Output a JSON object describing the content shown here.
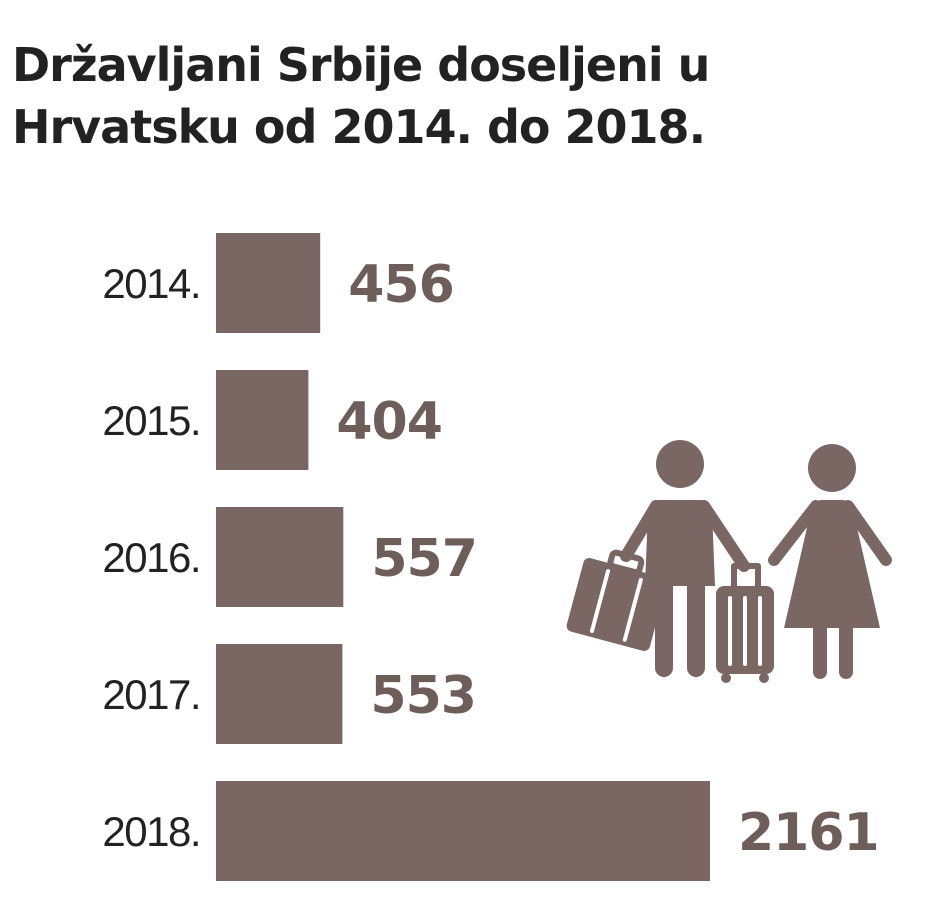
{
  "chart_data": {
    "type": "bar",
    "orientation": "horizontal",
    "title": "Državljani Srbije doseljeni u Hrvatsku od 2014. do 2018.",
    "title_lines": [
      "Državljani Srbije doseljeni u",
      "Hrvatsku od 2014. do 2018."
    ],
    "categories": [
      "2014.",
      "2015.",
      "2016.",
      "2017.",
      "2018."
    ],
    "values": [
      456,
      404,
      557,
      553,
      2161
    ],
    "value_labels": [
      "456",
      "404",
      "557",
      "553",
      "2161"
    ],
    "xlabel": "",
    "ylabel": "",
    "xlim": [
      0,
      2161
    ],
    "grid": false,
    "legend": "none"
  },
  "colors": {
    "bar": "#7a6763",
    "value_text": "#6e5e5a",
    "text": "#222222",
    "icon": "#7a6763"
  },
  "icons": {
    "illustration": "travelers-with-luggage-icon"
  }
}
